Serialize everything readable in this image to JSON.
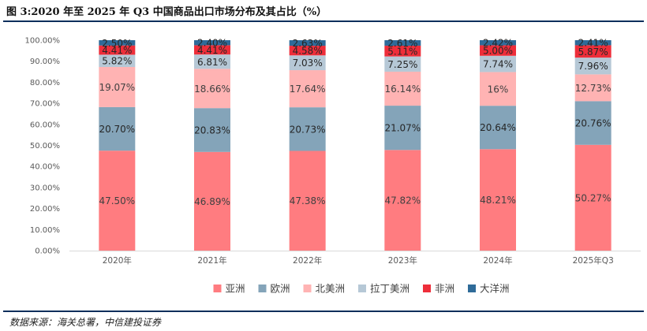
{
  "figure": {
    "title": "图 3:2020 年至 2025 年 Q3 中国商品出口市场分布及其占比（%）",
    "source": "数据来源：海关总署，中信建投证券"
  },
  "chart_data": {
    "type": "bar",
    "stacked": true,
    "title": "",
    "xlabel": "",
    "ylabel": "",
    "ylim": [
      0,
      100
    ],
    "y_ticks": [
      "0.00%",
      "10.00%",
      "20.00%",
      "30.00%",
      "40.00%",
      "50.00%",
      "60.00%",
      "70.00%",
      "80.00%",
      "90.00%",
      "100.00%"
    ],
    "grid": false,
    "legend_position": "bottom",
    "categories": [
      "2020年",
      "2021年",
      "2022年",
      "2023年",
      "2024年",
      "2025年Q3"
    ],
    "series": [
      {
        "name": "亚洲",
        "color": "#ff7c80",
        "label_color": "#404040",
        "values": [
          47.5,
          46.89,
          47.38,
          47.82,
          48.21,
          50.27
        ],
        "labels": [
          "47.50%",
          "46.89%",
          "47.38%",
          "47.82%",
          "48.21%",
          "50.27%"
        ]
      },
      {
        "name": "欧洲",
        "color": "#84a4b9",
        "label_color": "#262626",
        "values": [
          20.7,
          20.83,
          20.73,
          21.07,
          20.64,
          20.76
        ],
        "labels": [
          "20.70%",
          "20.83%",
          "20.73%",
          "21.07%",
          "20.64%",
          "20.76%"
        ]
      },
      {
        "name": "北美洲",
        "color": "#ffb3b3",
        "label_color": "#404040",
        "values": [
          19.07,
          18.66,
          17.64,
          16.14,
          16.0,
          12.73
        ],
        "labels": [
          "19.07%",
          "18.66%",
          "17.64%",
          "16.14%",
          "16%",
          "12.73%"
        ]
      },
      {
        "name": "拉丁美洲",
        "color": "#b6c8d6",
        "label_color": "#262626",
        "values": [
          5.82,
          6.81,
          7.03,
          7.25,
          7.74,
          7.96
        ],
        "labels": [
          "5.82%",
          "6.81%",
          "7.03%",
          "7.25%",
          "7.74%",
          "7.96%"
        ]
      },
      {
        "name": "非洲",
        "color": "#ee2e3a",
        "label_color": "#262626",
        "values": [
          4.41,
          4.41,
          4.58,
          5.11,
          5.0,
          5.87
        ],
        "labels": [
          "4.41%",
          "4.41%",
          "4.58%",
          "5.11%",
          "5.00%",
          "5.87%"
        ]
      },
      {
        "name": "大洋洲",
        "color": "#2f6b99",
        "label_color": "#262626",
        "values": [
          2.5,
          2.4,
          2.63,
          2.61,
          2.42,
          2.41
        ],
        "labels": [
          "2.50%",
          "2.40%",
          "2.63%",
          "2.61%",
          "2.42%",
          "2.41%"
        ]
      }
    ]
  }
}
